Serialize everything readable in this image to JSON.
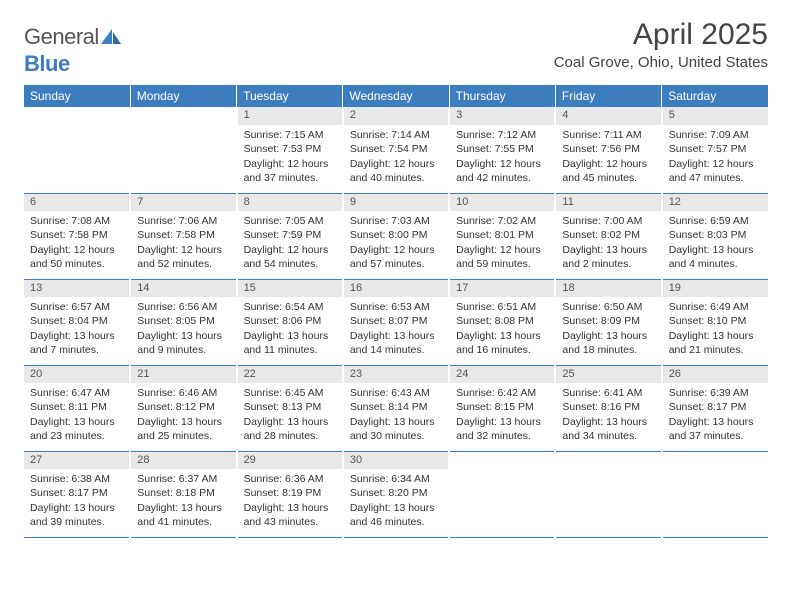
{
  "logo": {
    "text1": "General",
    "text2": "Blue"
  },
  "title": "April 2025",
  "location": "Coal Grove, Ohio, United States",
  "weekdays": [
    "Sunday",
    "Monday",
    "Tuesday",
    "Wednesday",
    "Thursday",
    "Friday",
    "Saturday"
  ],
  "colors": {
    "header_bg": "#3b7dbf",
    "header_text": "#ffffff",
    "daynum_bg": "#e8e8e8",
    "rule": "#3b7dbf"
  },
  "weeks": [
    [
      null,
      null,
      {
        "n": "1",
        "sr": "7:15 AM",
        "ss": "7:53 PM",
        "dl": "12 hours and 37 minutes."
      },
      {
        "n": "2",
        "sr": "7:14 AM",
        "ss": "7:54 PM",
        "dl": "12 hours and 40 minutes."
      },
      {
        "n": "3",
        "sr": "7:12 AM",
        "ss": "7:55 PM",
        "dl": "12 hours and 42 minutes."
      },
      {
        "n": "4",
        "sr": "7:11 AM",
        "ss": "7:56 PM",
        "dl": "12 hours and 45 minutes."
      },
      {
        "n": "5",
        "sr": "7:09 AM",
        "ss": "7:57 PM",
        "dl": "12 hours and 47 minutes."
      }
    ],
    [
      {
        "n": "6",
        "sr": "7:08 AM",
        "ss": "7:58 PM",
        "dl": "12 hours and 50 minutes."
      },
      {
        "n": "7",
        "sr": "7:06 AM",
        "ss": "7:58 PM",
        "dl": "12 hours and 52 minutes."
      },
      {
        "n": "8",
        "sr": "7:05 AM",
        "ss": "7:59 PM",
        "dl": "12 hours and 54 minutes."
      },
      {
        "n": "9",
        "sr": "7:03 AM",
        "ss": "8:00 PM",
        "dl": "12 hours and 57 minutes."
      },
      {
        "n": "10",
        "sr": "7:02 AM",
        "ss": "8:01 PM",
        "dl": "12 hours and 59 minutes."
      },
      {
        "n": "11",
        "sr": "7:00 AM",
        "ss": "8:02 PM",
        "dl": "13 hours and 2 minutes."
      },
      {
        "n": "12",
        "sr": "6:59 AM",
        "ss": "8:03 PM",
        "dl": "13 hours and 4 minutes."
      }
    ],
    [
      {
        "n": "13",
        "sr": "6:57 AM",
        "ss": "8:04 PM",
        "dl": "13 hours and 7 minutes."
      },
      {
        "n": "14",
        "sr": "6:56 AM",
        "ss": "8:05 PM",
        "dl": "13 hours and 9 minutes."
      },
      {
        "n": "15",
        "sr": "6:54 AM",
        "ss": "8:06 PM",
        "dl": "13 hours and 11 minutes."
      },
      {
        "n": "16",
        "sr": "6:53 AM",
        "ss": "8:07 PM",
        "dl": "13 hours and 14 minutes."
      },
      {
        "n": "17",
        "sr": "6:51 AM",
        "ss": "8:08 PM",
        "dl": "13 hours and 16 minutes."
      },
      {
        "n": "18",
        "sr": "6:50 AM",
        "ss": "8:09 PM",
        "dl": "13 hours and 18 minutes."
      },
      {
        "n": "19",
        "sr": "6:49 AM",
        "ss": "8:10 PM",
        "dl": "13 hours and 21 minutes."
      }
    ],
    [
      {
        "n": "20",
        "sr": "6:47 AM",
        "ss": "8:11 PM",
        "dl": "13 hours and 23 minutes."
      },
      {
        "n": "21",
        "sr": "6:46 AM",
        "ss": "8:12 PM",
        "dl": "13 hours and 25 minutes."
      },
      {
        "n": "22",
        "sr": "6:45 AM",
        "ss": "8:13 PM",
        "dl": "13 hours and 28 minutes."
      },
      {
        "n": "23",
        "sr": "6:43 AM",
        "ss": "8:14 PM",
        "dl": "13 hours and 30 minutes."
      },
      {
        "n": "24",
        "sr": "6:42 AM",
        "ss": "8:15 PM",
        "dl": "13 hours and 32 minutes."
      },
      {
        "n": "25",
        "sr": "6:41 AM",
        "ss": "8:16 PM",
        "dl": "13 hours and 34 minutes."
      },
      {
        "n": "26",
        "sr": "6:39 AM",
        "ss": "8:17 PM",
        "dl": "13 hours and 37 minutes."
      }
    ],
    [
      {
        "n": "27",
        "sr": "6:38 AM",
        "ss": "8:17 PM",
        "dl": "13 hours and 39 minutes."
      },
      {
        "n": "28",
        "sr": "6:37 AM",
        "ss": "8:18 PM",
        "dl": "13 hours and 41 minutes."
      },
      {
        "n": "29",
        "sr": "6:36 AM",
        "ss": "8:19 PM",
        "dl": "13 hours and 43 minutes."
      },
      {
        "n": "30",
        "sr": "6:34 AM",
        "ss": "8:20 PM",
        "dl": "13 hours and 46 minutes."
      },
      null,
      null,
      null
    ]
  ],
  "labels": {
    "sunrise": "Sunrise:",
    "sunset": "Sunset:",
    "daylight": "Daylight:"
  }
}
